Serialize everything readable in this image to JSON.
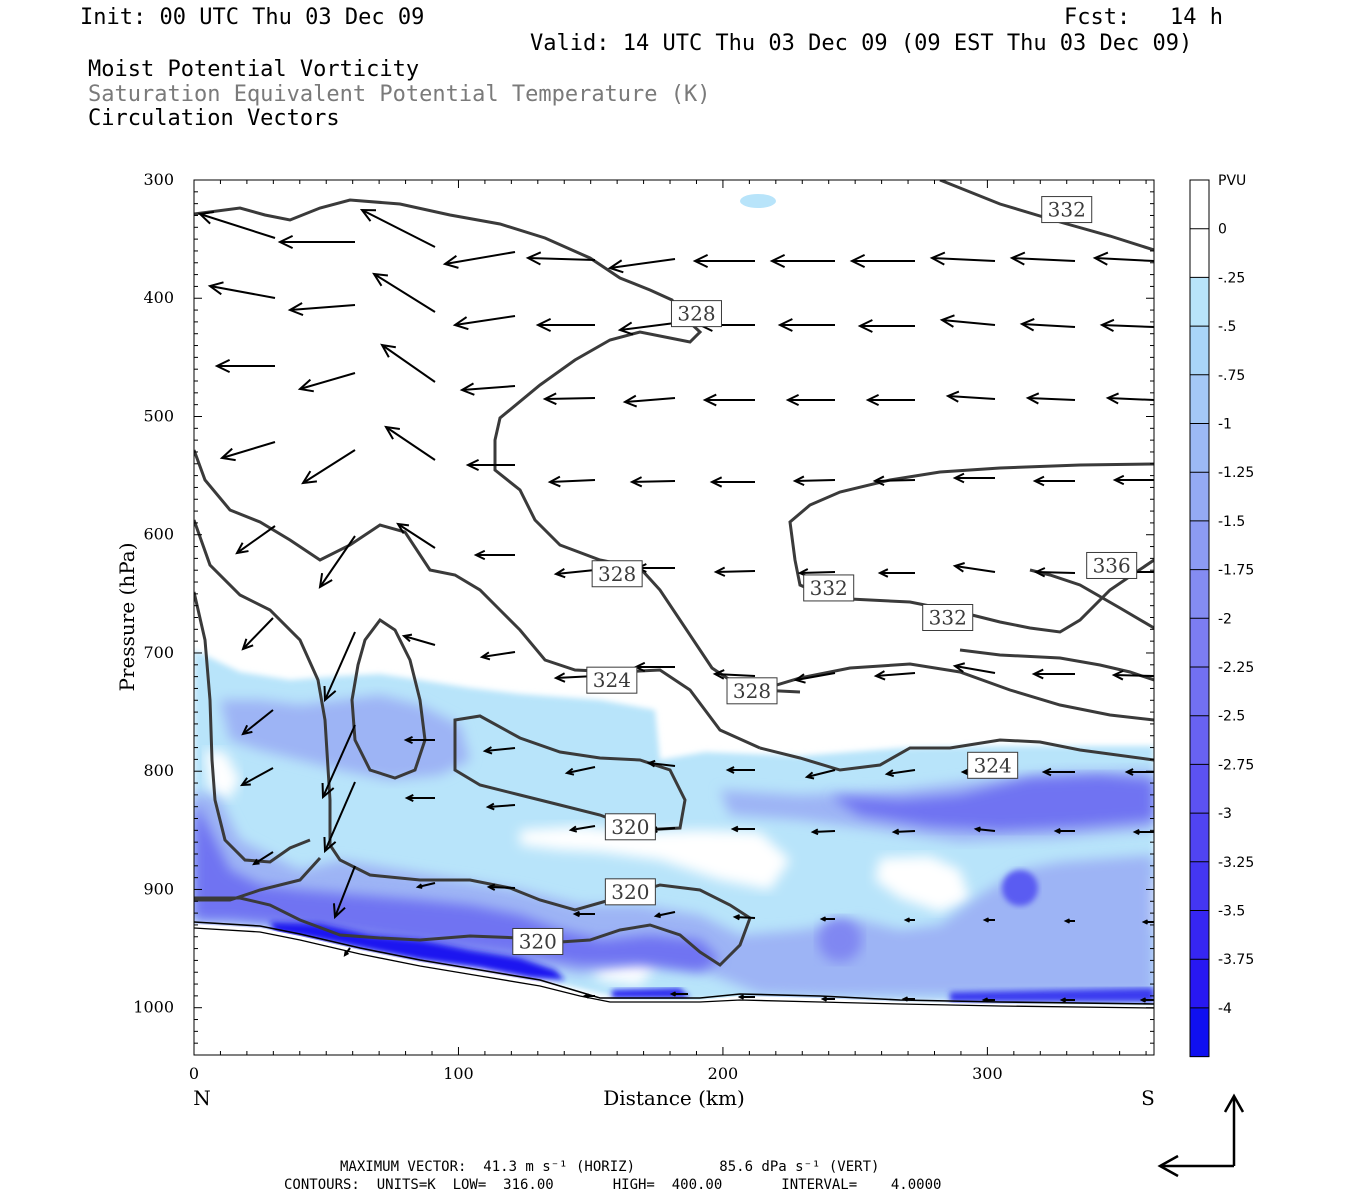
{
  "header": {
    "init": "Init: 00 UTC Thu 03 Dec 09",
    "fcst": "Fcst:   14 h",
    "valid": "Valid: 14 UTC Thu 03 Dec 09 (09 EST Thu 03 Dec 09)",
    "field1": "Moist Potential Vorticity",
    "field2": "Saturation Equivalent Potential Temperature (K)",
    "field3": "Circulation Vectors"
  },
  "footer": {
    "max_vector_line": "MAXIMUM VECTOR:  41.3 m s⁻¹ (HORIZ)          85.6 dPa s⁻¹ (VERT)",
    "contours_line": "CONTOURS:  UNITS=K  LOW=  316.00       HIGH=  400.00       INTERVAL=    4.0000"
  },
  "colors": {
    "contour": "#3a3a3a",
    "vector": "#000000",
    "pv_light": "#b8e4fa",
    "pv_mid": "#8ca2f4",
    "pv_strong": "#1010f0"
  },
  "chart_data": {
    "type": "cross-section",
    "xlabel": "Distance (km)",
    "ylabel": "Pressure (hPa)",
    "xlim": [
      0,
      363
    ],
    "ylim": [
      1040,
      300
    ],
    "x_ticks": [
      "0",
      "100",
      "200",
      "300"
    ],
    "x_tick_values": [
      0,
      100,
      200,
      300
    ],
    "y_ticks": [
      "300",
      "400",
      "500",
      "600",
      "700",
      "800",
      "900",
      "1000"
    ],
    "y_tick_values": [
      300,
      400,
      500,
      600,
      700,
      800,
      900,
      1000
    ],
    "left_end_label": "N",
    "right_end_label": "S",
    "colorbar": {
      "unit": "PVU",
      "labels": [
        "0",
        "-.25",
        "-.5",
        "-.75",
        "-1",
        "-1.25",
        "-1.5",
        "-1.75",
        "-2",
        "-2.25",
        "-2.5",
        "-2.75",
        "-3",
        "-3.25",
        "-3.5",
        "-3.75",
        "-4"
      ],
      "colors": [
        "#ffffff",
        "#ffffff",
        "#b8e4fa",
        "#a9d5f8",
        "#a4c8f6",
        "#9cb9f5",
        "#94aaf4",
        "#8c9bf3",
        "#848cf2",
        "#7c7df2",
        "#7270f2",
        "#6862f2",
        "#5c52f2",
        "#5044f2",
        "#4436f2",
        "#3626f2",
        "#2818f2",
        "#1010f0"
      ]
    },
    "contour_labels": [
      {
        "text": "332",
        "x": 330,
        "p": 325
      },
      {
        "text": "328",
        "x": 190,
        "p": 413
      },
      {
        "text": "328",
        "x": 160,
        "p": 633
      },
      {
        "text": "332",
        "x": 240,
        "p": 645
      },
      {
        "text": "332",
        "x": 285,
        "p": 670
      },
      {
        "text": "336",
        "x": 347,
        "p": 626
      },
      {
        "text": "324",
        "x": 158,
        "p": 723
      },
      {
        "text": "328",
        "x": 211,
        "p": 732
      },
      {
        "text": "324",
        "x": 302,
        "p": 795
      },
      {
        "text": "320",
        "x": 165,
        "p": 847
      },
      {
        "text": "320",
        "x": 165,
        "p": 902
      },
      {
        "text": "320",
        "x": 130,
        "p": 944
      }
    ]
  }
}
